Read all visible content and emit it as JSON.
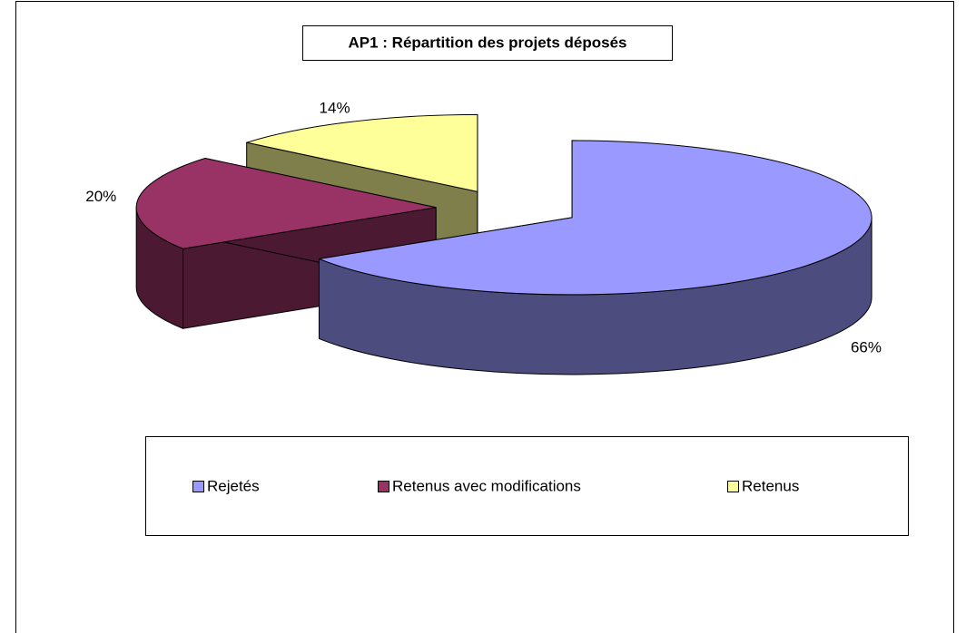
{
  "chart_data": {
    "type": "pie",
    "title": "AP1 : Répartition des projets déposés",
    "categories": [
      "Rejetés",
      "Retenus avec modifications",
      "Retenus"
    ],
    "values": [
      66,
      20,
      14
    ],
    "value_labels": [
      "66%",
      "20%",
      "14%"
    ],
    "colors": [
      "#9999ff",
      "#993366",
      "#ffff99"
    ],
    "legend": "bottom"
  }
}
